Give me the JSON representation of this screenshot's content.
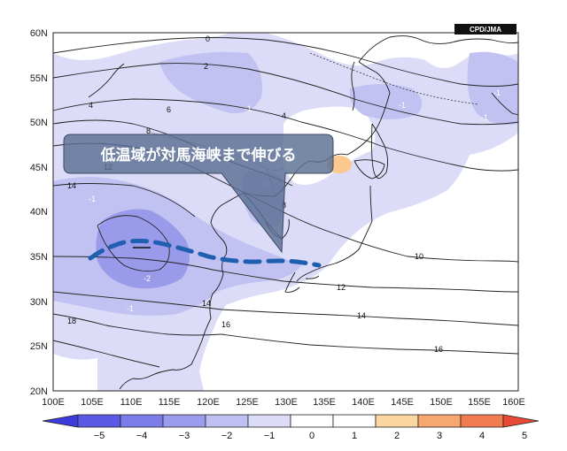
{
  "credit": "CPD/JMA",
  "callout": "低温域が対馬海峡まで伸びる",
  "lat_labels": [
    "60N",
    "55N",
    "50N",
    "45N",
    "40N",
    "35N",
    "30N",
    "25N",
    "20N"
  ],
  "lon_labels": [
    "100E",
    "105E",
    "110E",
    "115E",
    "120E",
    "125E",
    "130E",
    "135E",
    "140E",
    "145E",
    "150E",
    "155E",
    "160E"
  ],
  "colorbar": {
    "labels": [
      "-5",
      "-4",
      "-3",
      "-2",
      "-1",
      "0",
      "1",
      "2",
      "3",
      "4",
      "5"
    ],
    "colors": [
      "#3c3cdc",
      "#5a5ae6",
      "#7b7bea",
      "#9c9cee",
      "#c0c0f4",
      "#dcdcf8",
      "#ffffff",
      "#ffffff",
      "#fbd6a0",
      "#f7a86e",
      "#f07c50",
      "#e84a36"
    ]
  },
  "colors": {
    "light_anomaly": "#dcdcf8",
    "medium_anomaly": "#c2c2f2",
    "strong_anomaly": "#9a9aea",
    "warm_anomaly": "#fbc98e",
    "dash_line": "#1f5fb0",
    "callout_fill": "#5a6f93"
  },
  "contour_labels": [
    {
      "text": "0"
    },
    {
      "text": "2"
    },
    {
      "text": "4"
    },
    {
      "text": "6"
    },
    {
      "text": "4"
    },
    {
      "text": "8"
    },
    {
      "text": "12"
    },
    {
      "text": "14"
    },
    {
      "text": "8"
    },
    {
      "text": "10"
    },
    {
      "text": "12"
    },
    {
      "text": "14"
    },
    {
      "text": "16"
    },
    {
      "text": "18"
    },
    {
      "text": "14"
    },
    {
      "text": "16"
    },
    {
      "text": "-1"
    },
    {
      "text": "-1"
    },
    {
      "text": "-1"
    },
    {
      "text": "-1"
    },
    {
      "text": "-1"
    },
    {
      "text": "-2"
    },
    {
      "text": "-1"
    },
    {
      "text": "-1"
    }
  ]
}
